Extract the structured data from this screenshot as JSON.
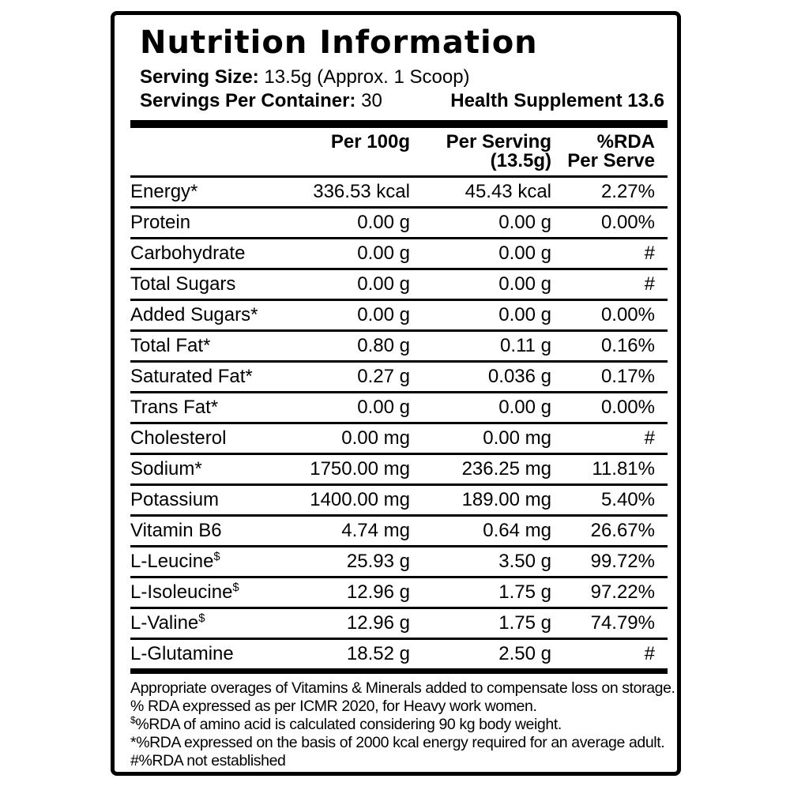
{
  "label": {
    "title": "Nutrition Information",
    "serving_size_label": "Serving Size:",
    "serving_size_value": " 13.5g (Approx. 1 Scoop)",
    "servings_per_container_label": "Servings Per Container:",
    "servings_per_container_value": " 30",
    "supplement_note": "Health Supplement 13.6"
  },
  "table": {
    "header": {
      "col1": "",
      "per_100g": "Per 100g",
      "per_serving": [
        "Per Serving",
        "(13.5g)"
      ],
      "rda": [
        "%RDA",
        "Per Serve"
      ]
    },
    "rows": [
      {
        "label": "Energy*",
        "sup": "",
        "per_100g": "336.53 kcal",
        "per_serving": "45.43 kcal",
        "rda_per_serve": "2.27%"
      },
      {
        "label": "Protein",
        "sup": "",
        "per_100g": "0.00 g",
        "per_serving": "0.00 g",
        "rda_per_serve": "0.00%"
      },
      {
        "label": "Carbohydrate",
        "sup": "",
        "per_100g": "0.00 g",
        "per_serving": "0.00 g",
        "rda_per_serve": "#"
      },
      {
        "label": "Total Sugars",
        "sup": "",
        "per_100g": "0.00 g",
        "per_serving": "0.00 g",
        "rda_per_serve": "#"
      },
      {
        "label": "Added Sugars*",
        "sup": "",
        "per_100g": "0.00 g",
        "per_serving": "0.00 g",
        "rda_per_serve": "0.00%"
      },
      {
        "label": "Total Fat*",
        "sup": "",
        "per_100g": "0.80 g",
        "per_serving": "0.11 g",
        "rda_per_serve": "0.16%"
      },
      {
        "label": "Saturated Fat*",
        "sup": "",
        "per_100g": "0.27 g",
        "per_serving": "0.036 g",
        "rda_per_serve": "0.17%"
      },
      {
        "label": "Trans Fat*",
        "sup": "",
        "per_100g": "0.00 g",
        "per_serving": "0.00 g",
        "rda_per_serve": "0.00%"
      },
      {
        "label": "Cholesterol",
        "sup": "",
        "per_100g": "0.00 mg",
        "per_serving": "0.00 mg",
        "rda_per_serve": "#"
      },
      {
        "label": "Sodium*",
        "sup": "",
        "per_100g": "1750.00 mg",
        "per_serving": "236.25 mg",
        "rda_per_serve": "11.81%"
      },
      {
        "label": "Potassium",
        "sup": "",
        "per_100g": "1400.00 mg",
        "per_serving": "189.00 mg",
        "rda_per_serve": "5.40%"
      },
      {
        "label": "Vitamin B6",
        "sup": "",
        "per_100g": "4.74 mg",
        "per_serving": "0.64 mg",
        "rda_per_serve": "26.67%"
      },
      {
        "label": "L-Leucine",
        "sup": "$",
        "per_100g": "25.93 g",
        "per_serving": "3.50 g",
        "rda_per_serve": "99.72%"
      },
      {
        "label": "L-Isoleucine",
        "sup": "$",
        "per_100g": "12.96 g",
        "per_serving": "1.75 g",
        "rda_per_serve": "97.22%"
      },
      {
        "label": "L-Valine",
        "sup": "$",
        "per_100g": "12.96 g",
        "per_serving": "1.75 g",
        "rda_per_serve": "74.79%"
      },
      {
        "label": "L-Glutamine",
        "sup": "",
        "per_100g": "18.52 g",
        "per_serving": "2.50 g",
        "rda_per_serve": "#"
      }
    ]
  },
  "footnotes": [
    {
      "sup": "",
      "text": "Appropriate overages of Vitamins & Minerals added to compensate loss on storage."
    },
    {
      "sup": "",
      "text": "% RDA expressed as per ICMR 2020, for Heavy work women."
    },
    {
      "sup": "$",
      "text": "%RDA of amino acid is calculated considering 90 kg body weight."
    },
    {
      "sup": "",
      "text": "*%RDA expressed on the basis of 2000 kcal energy required for an average adult."
    },
    {
      "sup": "",
      "text": "#%RDA not established"
    }
  ]
}
